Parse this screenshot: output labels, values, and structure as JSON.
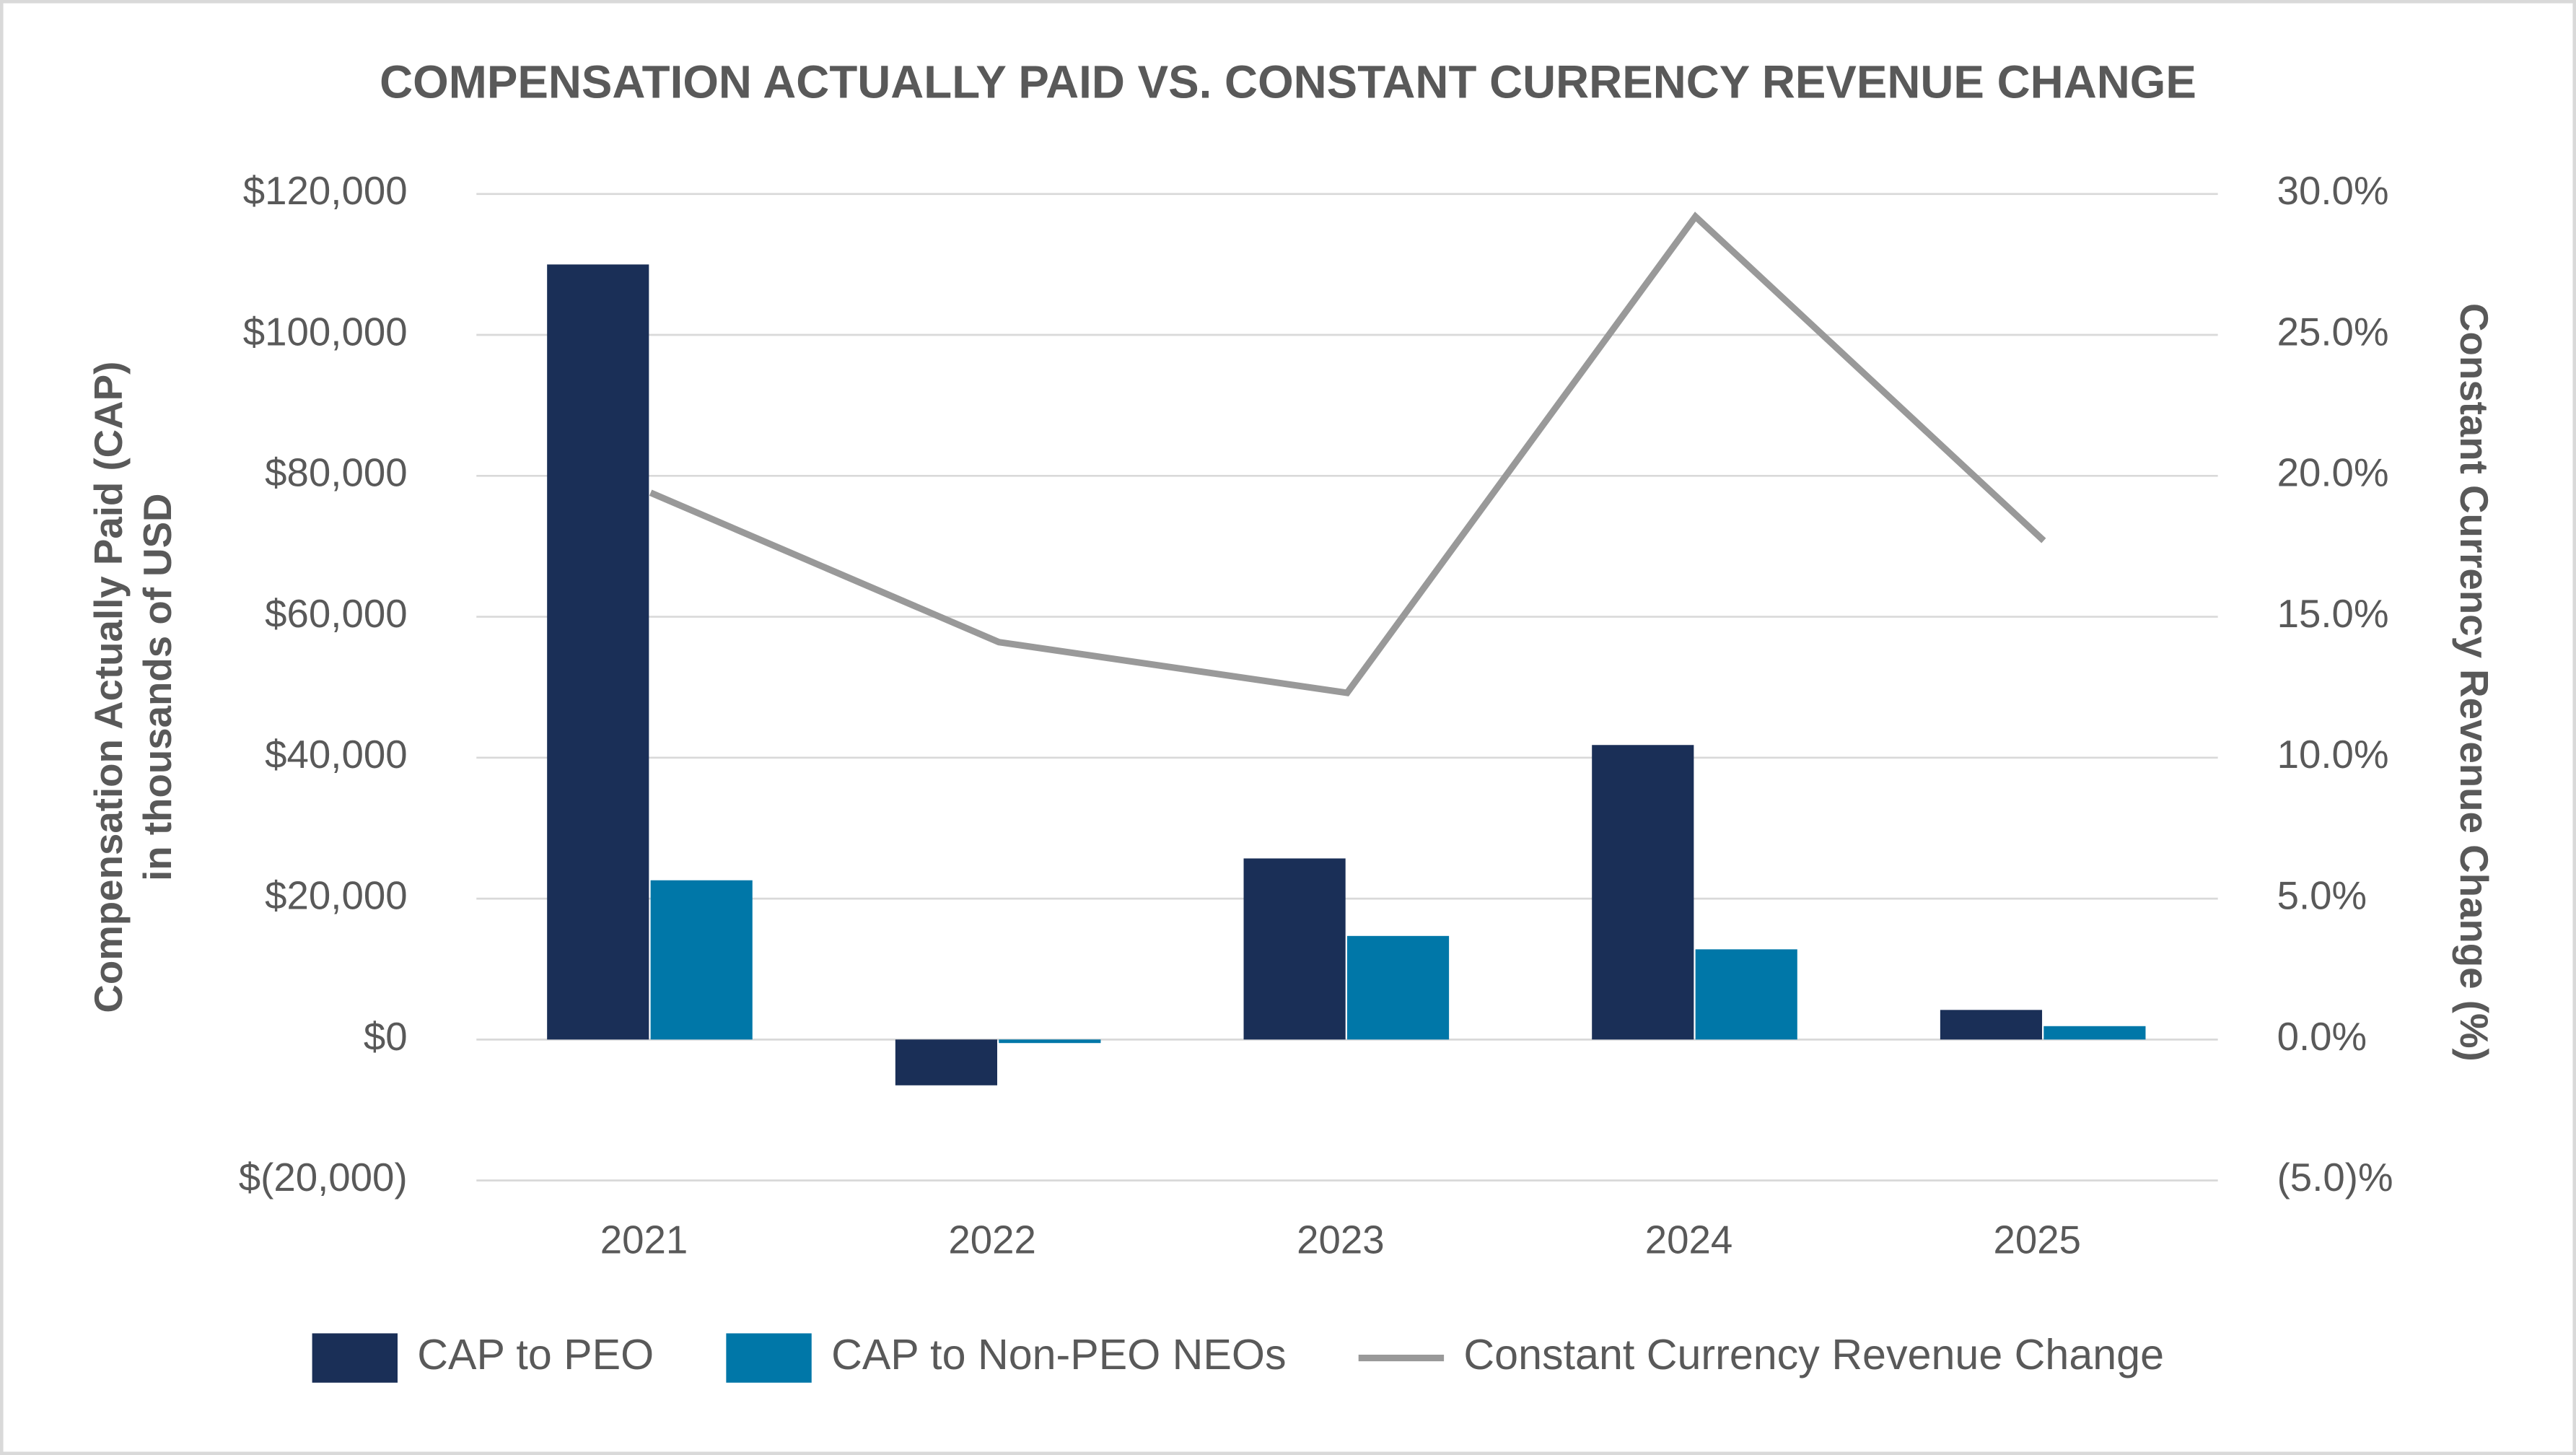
{
  "chart_data": {
    "type": "bar",
    "title": "COMPENSATION ACTUALLY PAID VS. CONSTANT CURRENCY REVENUE CHANGE",
    "ylabel": "Compensation Actually Paid (CAP) in thousands of USD",
    "y2label": "Constant Currency Revenue Change (%)",
    "categories": [
      "2021",
      "2022",
      "2023",
      "2024",
      "2025"
    ],
    "series": [
      {
        "name": "CAP to PEO",
        "type": "bar",
        "color": "#1a2f57",
        "values": [
          110000,
          -6500,
          25700,
          41800,
          4200
        ]
      },
      {
        "name": "CAP to Non-PEO NEOs",
        "type": "bar",
        "color": "#0077a8",
        "values": [
          22600,
          -500,
          14700,
          12800,
          1900
        ]
      },
      {
        "name": "Constant Currency Revenue Change",
        "type": "line",
        "axis": "y2",
        "color": "#999999",
        "values": [
          19.4,
          14.1,
          12.3,
          29.2,
          17.7
        ]
      }
    ],
    "ylim": [
      -20000,
      120000
    ],
    "yticks": [
      {
        "value": -20000,
        "label": "$(20,000)"
      },
      {
        "value": 0,
        "label": "$0"
      },
      {
        "value": 20000,
        "label": "$20,000"
      },
      {
        "value": 40000,
        "label": "$40,000"
      },
      {
        "value": 60000,
        "label": "$60,000"
      },
      {
        "value": 80000,
        "label": "$80,000"
      },
      {
        "value": 100000,
        "label": "$100,000"
      },
      {
        "value": 120000,
        "label": "$120,000"
      }
    ],
    "y2lim": [
      -5,
      30
    ],
    "y2ticks": [
      {
        "value": -5,
        "label": "(5.0)%"
      },
      {
        "value": 0,
        "label": "0.0%"
      },
      {
        "value": 5,
        "label": "5.0%"
      },
      {
        "value": 10,
        "label": "10.0%"
      },
      {
        "value": 15,
        "label": "15.0%"
      },
      {
        "value": 20,
        "label": "20.0%"
      },
      {
        "value": 25,
        "label": "25.0%"
      },
      {
        "value": 30,
        "label": "30.0%"
      }
    ],
    "grid": true,
    "legend": "bottom"
  }
}
